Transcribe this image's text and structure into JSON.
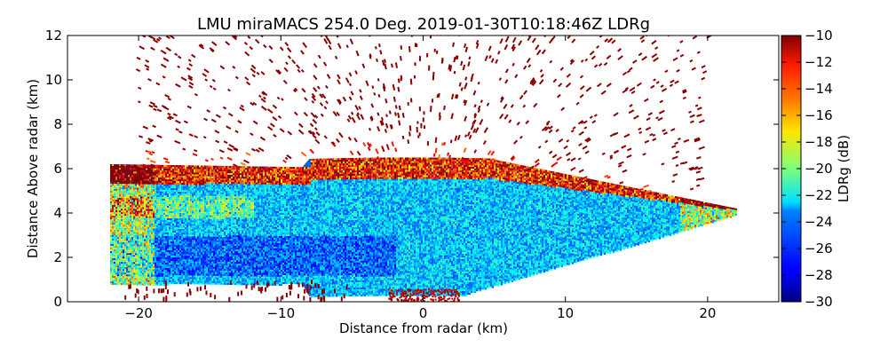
{
  "chart_data": {
    "type": "heatmap",
    "title": "LMU miraMACS 254.0 Deg. 2019-01-30T10:18:46Z  LDRg",
    "xlabel": "Distance from radar (km)",
    "ylabel": "Distance Above radar  (km)",
    "xlim": [
      -25,
      25
    ],
    "ylim": [
      0,
      12
    ],
    "x_ticks": [
      "−20",
      "−10",
      "0",
      "10",
      "20"
    ],
    "x_tick_values": [
      -20,
      -10,
      0,
      10,
      20
    ],
    "y_ticks": [
      "0",
      "2",
      "4",
      "6",
      "8",
      "10",
      "12"
    ],
    "y_tick_values": [
      0,
      2,
      4,
      6,
      8,
      10,
      12
    ],
    "colorbar": {
      "label": "LDRg (dB)",
      "range": [
        -30,
        -10
      ],
      "ticks": [
        "−10",
        "−12",
        "−14",
        "−16",
        "−18",
        "−20",
        "−22",
        "−24",
        "−26",
        "−28",
        "−30"
      ],
      "tick_values": [
        -10,
        -12,
        -14,
        -16,
        -18,
        -20,
        -22,
        -24,
        -26,
        -28,
        -30
      ],
      "colormap": "jet"
    },
    "rhi_scan": {
      "left_edge_km": -22,
      "right_edge_km": 22,
      "left_bottom_km": 0.8,
      "right_bottom_km": 3.9,
      "cloud_top_km": 6.5,
      "noise_ceiling_km": 12
    }
  }
}
